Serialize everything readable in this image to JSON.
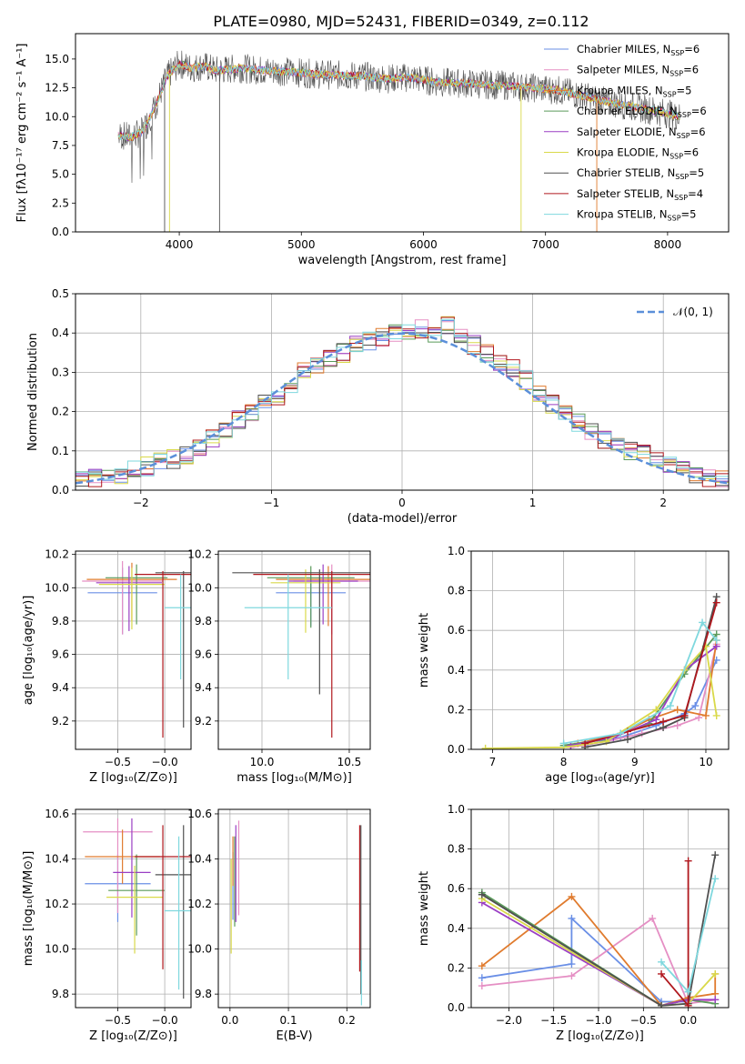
{
  "title": "PLATE=0980, MJD=52431, FIBERID=0349, z=0.112",
  "colors": {
    "s1": "#6a8fe6",
    "s2": "#e58fc4",
    "s3": "#e07b2e",
    "s4": "#5a9a5a",
    "s5": "#9a3fc4",
    "s6": "#d9d94a",
    "s7": "#505050",
    "s8": "#b0181e",
    "s9": "#7fd8de"
  },
  "chart_data": [
    {
      "id": "spectrum",
      "type": "line",
      "xlabel": "wavelength [Angstrom, rest frame]",
      "ylabel": "Flux [fλ10⁻¹⁷ erg cm⁻² s⁻¹ A⁻¹]",
      "xlim": [
        3150,
        8500
      ],
      "ylim": [
        0,
        17.2
      ],
      "xticks": [
        "4000",
        "5000",
        "6000",
        "7000",
        "8000"
      ],
      "yticks": [
        "0.0",
        "2.5",
        "5.0",
        "7.5",
        "10.0",
        "12.5",
        "15.0"
      ],
      "x": [
        3500,
        3600,
        3700,
        3800,
        3900,
        4000,
        4100,
        4200,
        4300,
        4500,
        4700,
        4900,
        5100,
        5300,
        5500,
        5700,
        5900,
        6100,
        6300,
        6500,
        6700,
        6900,
        7100,
        7300,
        7500,
        7700,
        7900,
        8100
      ],
      "y": [
        8.4,
        8.2,
        8.7,
        10.8,
        13.5,
        14.6,
        14.2,
        14.4,
        14.0,
        14.2,
        14.0,
        13.9,
        13.7,
        13.6,
        13.5,
        13.3,
        13.4,
        13.0,
        12.9,
        12.8,
        12.7,
        12.5,
        12.3,
        11.8,
        11.3,
        10.9,
        10.5,
        10.0
      ],
      "legend": [
        "Chabrier MILES, N_SSP=6",
        "Salpeter MILES, N_SSP=6",
        "Kroupa MILES, N_SSP=5",
        "Chabrier ELODIE, N_SSP=6",
        "Salpeter ELODIE, N_SSP=6",
        "Kroupa ELODIE, N_SSP=6",
        "Chabrier STELIB, N_SSP=5",
        "Salpeter STELIB, N_SSP=4",
        "Kroupa STELIB, N_SSP=5"
      ],
      "legend_pos": "top-right"
    },
    {
      "id": "residuals",
      "type": "line",
      "xlabel": "(data-model)/error",
      "ylabel": "Normed distribution",
      "xlim": [
        -2.5,
        2.5
      ],
      "ylim": [
        0,
        0.5
      ],
      "xticks": [
        "−2",
        "−1",
        "0",
        "1",
        "2"
      ],
      "yticks": [
        "0.0",
        "0.1",
        "0.2",
        "0.3",
        "0.4",
        "0.5"
      ],
      "legend": [
        "𝒩(0, 1)"
      ],
      "legend_pos": "top-right",
      "grid": true,
      "hist_x": [
        -2.5,
        -2.4,
        -2.3,
        -2.2,
        -2.1,
        -2.0,
        -1.9,
        -1.8,
        -1.7,
        -1.6,
        -1.5,
        -1.4,
        -1.3,
        -1.2,
        -1.1,
        -1.0,
        -0.9,
        -0.8,
        -0.7,
        -0.6,
        -0.5,
        -0.4,
        -0.3,
        -0.2,
        -0.1,
        0.0,
        0.1,
        0.2,
        0.3,
        0.4,
        0.5,
        0.6,
        0.7,
        0.8,
        0.9,
        1.0,
        1.1,
        1.2,
        1.3,
        1.4,
        1.5,
        1.6,
        1.7,
        1.8,
        1.9,
        2.0,
        2.1,
        2.2,
        2.3,
        2.4
      ],
      "hist_y": [
        0.03,
        0.03,
        0.035,
        0.04,
        0.05,
        0.06,
        0.07,
        0.08,
        0.09,
        0.11,
        0.13,
        0.15,
        0.18,
        0.2,
        0.22,
        0.24,
        0.27,
        0.3,
        0.32,
        0.34,
        0.35,
        0.37,
        0.38,
        0.39,
        0.4,
        0.4,
        0.41,
        0.4,
        0.42,
        0.4,
        0.37,
        0.35,
        0.33,
        0.31,
        0.28,
        0.25,
        0.22,
        0.2,
        0.17,
        0.15,
        0.13,
        0.11,
        0.1,
        0.09,
        0.08,
        0.06,
        0.05,
        0.04,
        0.03,
        0.03
      ]
    },
    {
      "id": "age-vs-Z",
      "type": "scatter",
      "xlabel": "Z [log₁₀(Z/Z⊙)]",
      "ylabel": "age  [log₁₀(age/yr)]",
      "xlim": [
        -0.95,
        0.28
      ],
      "ylim": [
        9.03,
        10.22
      ],
      "xticks": [
        "−0.5",
        "−0.0"
      ],
      "xtick_values": [
        -0.5,
        0.0
      ],
      "yticks": [
        "9.2",
        "9.4",
        "9.6",
        "9.8",
        "10.0",
        "10.2"
      ],
      "ytick_values": [
        9.2,
        9.4,
        9.6,
        9.8,
        10.0,
        10.2
      ],
      "grid": true,
      "errorbars": [
        {
          "s": "s1",
          "x": -0.45,
          "y": 9.97,
          "xerr": 0.37,
          "yerr": [
            0.25,
            0.15
          ]
        },
        {
          "s": "s2",
          "x": -0.45,
          "y": 10.04,
          "xerr": 0.43,
          "yerr": [
            0.32,
            0.12
          ]
        },
        {
          "s": "s3",
          "x": -0.35,
          "y": 10.05,
          "xerr": 0.48,
          "yerr": [
            0.25,
            0.1
          ]
        },
        {
          "s": "s4",
          "x": -0.3,
          "y": 10.06,
          "xerr": 0.33,
          "yerr": [
            0.28,
            0.08
          ]
        },
        {
          "s": "s5",
          "x": -0.38,
          "y": 10.03,
          "xerr": 0.35,
          "yerr": [
            0.29,
            0.1
          ]
        },
        {
          "s": "s6",
          "x": -0.35,
          "y": 10.02,
          "xerr": 0.35,
          "yerr": [
            0.27,
            0.1
          ]
        },
        {
          "s": "s7",
          "x": 0.2,
          "y": 10.09,
          "xerr": 0.3,
          "yerr": [
            0.93,
            0.01
          ]
        },
        {
          "s": "s8",
          "x": -0.02,
          "y": 10.08,
          "xerr": 0.3,
          "yerr": [
            0.98,
            0.02
          ]
        },
        {
          "s": "s9",
          "x": 0.17,
          "y": 9.88,
          "xerr": 0.17,
          "yerr": [
            0.43,
            0.2
          ]
        }
      ]
    },
    {
      "id": "age-vs-mass",
      "type": "scatter",
      "xlabel": "mass [log₁₀(M/M⊙)]",
      "ylabel": "",
      "xlim": [
        9.75,
        10.62
      ],
      "ylim": [
        9.03,
        10.22
      ],
      "xticks": [
        "10.0",
        "10.5"
      ],
      "xtick_values": [
        10.0,
        10.5
      ],
      "yticks": [
        "9.2",
        "9.4",
        "9.6",
        "9.8",
        "10.0",
        "10.2"
      ],
      "ytick_values": [
        9.2,
        9.4,
        9.6,
        9.8,
        10.0,
        10.2
      ],
      "grid": true,
      "errorbars": [
        {
          "s": "s1",
          "x": 10.28,
          "y": 9.97,
          "xerr": 0.2,
          "yerr": [
            0.2,
            0.1
          ]
        },
        {
          "s": "s2",
          "x": 10.4,
          "y": 10.04,
          "xerr": 0.22,
          "yerr": [
            0.32,
            0.1
          ]
        },
        {
          "s": "s3",
          "x": 10.38,
          "y": 10.05,
          "xerr": 0.3,
          "yerr": [
            0.28,
            0.08
          ]
        },
        {
          "s": "s4",
          "x": 10.28,
          "y": 10.06,
          "xerr": 0.25,
          "yerr": [
            0.3,
            0.07
          ]
        },
        {
          "s": "s5",
          "x": 10.35,
          "y": 10.04,
          "xerr": 0.2,
          "yerr": [
            0.26,
            0.1
          ]
        },
        {
          "s": "s6",
          "x": 10.25,
          "y": 10.03,
          "xerr": 0.2,
          "yerr": [
            0.3,
            0.08
          ]
        },
        {
          "s": "s7",
          "x": 10.33,
          "y": 10.09,
          "xerr": 0.5,
          "yerr": [
            0.73,
            0.02
          ]
        },
        {
          "s": "s8",
          "x": 10.4,
          "y": 10.08,
          "xerr": 0.45,
          "yerr": [
            0.98,
            0.02
          ]
        },
        {
          "s": "s9",
          "x": 10.15,
          "y": 9.88,
          "xerr": 0.25,
          "yerr": [
            0.43,
            0.2
          ]
        }
      ]
    },
    {
      "id": "mass-weight-vs-age",
      "type": "line",
      "xlabel": "age  [log₁₀(age/yr)]",
      "ylabel": "mass weight",
      "xlim": [
        6.7,
        10.32
      ],
      "ylim": [
        0,
        1.0
      ],
      "xticks": [
        "7",
        "8",
        "9",
        "10"
      ],
      "xtick_values": [
        7,
        8,
        9,
        10
      ],
      "yticks": [
        "0.0",
        "0.2",
        "0.4",
        "0.6",
        "0.8",
        "1.0"
      ],
      "ytick_values": [
        0,
        0.2,
        0.4,
        0.6,
        0.8,
        1.0
      ],
      "grid": true,
      "series": [
        {
          "s": "s1",
          "x": [
            8.3,
            8.8,
            9.3,
            9.7,
            9.85,
            10.15
          ],
          "y": [
            0.02,
            0.06,
            0.12,
            0.18,
            0.22,
            0.45
          ]
        },
        {
          "s": "s2",
          "x": [
            8.1,
            8.6,
            9.1,
            9.6,
            9.9,
            10.15
          ],
          "y": [
            0.01,
            0.04,
            0.08,
            0.12,
            0.16,
            0.53
          ]
        },
        {
          "s": "s3",
          "x": [
            8.2,
            8.8,
            9.2,
            9.6,
            10.0,
            10.15
          ],
          "y": [
            0.03,
            0.08,
            0.15,
            0.2,
            0.17,
            0.55
          ]
        },
        {
          "s": "s4",
          "x": [
            8.0,
            8.6,
            9.2,
            9.7,
            10.15
          ],
          "y": [
            0.02,
            0.05,
            0.13,
            0.38,
            0.58
          ]
        },
        {
          "s": "s5",
          "x": [
            8.1,
            8.7,
            9.3,
            9.7,
            10.15
          ],
          "y": [
            0.02,
            0.06,
            0.15,
            0.4,
            0.52
          ]
        },
        {
          "s": "s6",
          "x": [
            6.9,
            8.0,
            8.6,
            9.3,
            9.7,
            10.0,
            10.15
          ],
          "y": [
            0.005,
            0.01,
            0.04,
            0.2,
            0.4,
            0.52,
            0.17
          ]
        },
        {
          "s": "s7",
          "x": [
            8.3,
            8.9,
            9.4,
            9.7,
            10.15
          ],
          "y": [
            0.01,
            0.05,
            0.11,
            0.16,
            0.77
          ]
        },
        {
          "s": "s8",
          "x": [
            8.3,
            8.9,
            9.4,
            9.7,
            10.15
          ],
          "y": [
            0.03,
            0.09,
            0.14,
            0.17,
            0.74
          ]
        },
        {
          "s": "s9",
          "x": [
            8.0,
            8.8,
            9.5,
            9.95,
            10.15
          ],
          "y": [
            0.03,
            0.08,
            0.22,
            0.64,
            0.55
          ]
        }
      ]
    },
    {
      "id": "mass-vs-Z",
      "type": "scatter",
      "xlabel": "Z [log₁₀(Z/Z⊙)]",
      "ylabel": "mass [log₁₀(M/M⊙)]",
      "xlim": [
        -0.95,
        0.28
      ],
      "ylim": [
        9.74,
        10.62
      ],
      "xticks": [
        "−0.5",
        "−0.0"
      ],
      "xtick_values": [
        -0.5,
        0.0
      ],
      "yticks": [
        "9.8",
        "10.0",
        "10.2",
        "10.4",
        "10.6"
      ],
      "ytick_values": [
        9.8,
        10.0,
        10.2,
        10.4,
        10.6
      ],
      "grid": true,
      "errorbars": [
        {
          "s": "s1",
          "x": -0.5,
          "y": 10.29,
          "xerr": 0.35,
          "yerr": [
            0.17,
            0.13
          ]
        },
        {
          "s": "s2",
          "x": -0.5,
          "y": 10.52,
          "xerr": 0.37,
          "yerr": [
            0.36,
            0.06
          ]
        },
        {
          "s": "s3",
          "x": -0.45,
          "y": 10.41,
          "xerr": 0.4,
          "yerr": [
            0.12,
            0.12
          ]
        },
        {
          "s": "s4",
          "x": -0.3,
          "y": 10.26,
          "xerr": 0.3,
          "yerr": [
            0.2,
            0.16
          ]
        },
        {
          "s": "s5",
          "x": -0.35,
          "y": 10.34,
          "xerr": 0.2,
          "yerr": [
            0.2,
            0.24
          ]
        },
        {
          "s": "s6",
          "x": -0.32,
          "y": 10.23,
          "xerr": 0.3,
          "yerr": [
            0.25,
            0.14
          ]
        },
        {
          "s": "s7",
          "x": 0.2,
          "y": 10.33,
          "xerr": 0.3,
          "yerr": [
            0.55,
            0.22
          ]
        },
        {
          "s": "s8",
          "x": -0.02,
          "y": 10.41,
          "xerr": 0.3,
          "yerr": [
            0.5,
            0.14
          ]
        },
        {
          "s": "s9",
          "x": 0.15,
          "y": 10.17,
          "xerr": 0.15,
          "yerr": [
            0.35,
            0.33
          ]
        }
      ]
    },
    {
      "id": "mass-vs-ebv",
      "type": "scatter",
      "xlabel": "E(B-V)",
      "ylabel": "",
      "xlim": [
        -0.02,
        0.24
      ],
      "ylim": [
        9.74,
        10.62
      ],
      "xticks": [
        "0.0",
        "0.1",
        "0.2"
      ],
      "xtick_values": [
        0.0,
        0.1,
        0.2
      ],
      "yticks": [
        "9.8",
        "10.0",
        "10.2",
        "10.4",
        "10.6"
      ],
      "ytick_values": [
        9.8,
        10.0,
        10.2,
        10.4,
        10.6
      ],
      "grid": true,
      "errorbars": [
        {
          "s": "s1",
          "x": 0.005,
          "y": 10.3,
          "xerr": 0,
          "yerr": [
            0.17,
            0.13
          ]
        },
        {
          "s": "s2",
          "x": 0.015,
          "y": 10.45,
          "xerr": 0,
          "yerr": [
            0.3,
            0.12
          ]
        },
        {
          "s": "s3",
          "x": 0.005,
          "y": 10.4,
          "xerr": 0,
          "yerr": [
            0.12,
            0.1
          ]
        },
        {
          "s": "s4",
          "x": 0.008,
          "y": 10.3,
          "xerr": 0,
          "yerr": [
            0.2,
            0.2
          ]
        },
        {
          "s": "s5",
          "x": 0.01,
          "y": 10.35,
          "xerr": 0,
          "yerr": [
            0.23,
            0.2
          ]
        },
        {
          "s": "s6",
          "x": 0.002,
          "y": 10.2,
          "xerr": 0,
          "yerr": [
            0.22,
            0.2
          ]
        },
        {
          "s": "s7",
          "x": 0.224,
          "y": 10.35,
          "xerr": 0,
          "yerr": [
            0.55,
            0.2
          ]
        },
        {
          "s": "s8",
          "x": 0.222,
          "y": 10.4,
          "xerr": 0,
          "yerr": [
            0.5,
            0.15
          ]
        },
        {
          "s": "s9",
          "x": 0.225,
          "y": 9.85,
          "xerr": 0,
          "yerr": [
            0.1,
            0.1
          ]
        }
      ]
    },
    {
      "id": "mass-weight-vs-Z",
      "type": "line",
      "xlabel": "Z [log₁₀(Z/Z⊙)]",
      "ylabel": "mass weight",
      "xlim": [
        -2.42,
        0.45
      ],
      "ylim": [
        0,
        1.0
      ],
      "xticks": [
        "−2.0",
        "−1.5",
        "−1.0",
        "−0.5",
        "0.0"
      ],
      "xtick_values": [
        -2.0,
        -1.5,
        -1.0,
        -0.5,
        0.0
      ],
      "yticks": [
        "0.0",
        "0.2",
        "0.4",
        "0.6",
        "0.8",
        "1.0"
      ],
      "ytick_values": [
        0,
        0.2,
        0.4,
        0.6,
        0.8,
        1.0
      ],
      "grid": true,
      "series": [
        {
          "s": "s1",
          "x": [
            -2.3,
            -1.3,
            -1.3,
            -0.3,
            0.0,
            0.0
          ],
          "y": [
            0.15,
            0.22,
            0.45,
            0.03,
            0.03,
            0.08
          ]
        },
        {
          "s": "s2",
          "x": [
            -2.3,
            -1.3,
            -0.4,
            0.0,
            0.3
          ],
          "y": [
            0.11,
            0.16,
            0.45,
            0.02,
            0.04
          ]
        },
        {
          "s": "s3",
          "x": [
            -2.3,
            -1.3,
            -0.3,
            0.0,
            0.3,
            0.3
          ],
          "y": [
            0.21,
            0.56,
            0.01,
            0.05,
            0.07,
            0.17
          ]
        },
        {
          "s": "s4",
          "x": [
            -2.3,
            -0.3,
            0.0,
            0.3
          ],
          "y": [
            0.58,
            0.01,
            0.04,
            0.02
          ]
        },
        {
          "s": "s5",
          "x": [
            -2.3,
            -0.3,
            0.0,
            0.3
          ],
          "y": [
            0.53,
            0.01,
            0.04,
            0.04
          ]
        },
        {
          "s": "s6",
          "x": [
            -2.3,
            -0.3,
            0.0,
            0.3
          ],
          "y": [
            0.55,
            0.01,
            0.02,
            0.17
          ]
        },
        {
          "s": "s7",
          "x": [
            -2.3,
            -0.3,
            0.0,
            0.3
          ],
          "y": [
            0.57,
            0.01,
            0.02,
            0.77
          ]
        },
        {
          "s": "s8",
          "x": [
            -0.3,
            0.0,
            0.0
          ],
          "y": [
            0.17,
            0.01,
            0.74
          ]
        },
        {
          "s": "s9",
          "x": [
            -0.3,
            0.0,
            0.3
          ],
          "y": [
            0.23,
            0.08,
            0.65
          ]
        }
      ]
    }
  ]
}
